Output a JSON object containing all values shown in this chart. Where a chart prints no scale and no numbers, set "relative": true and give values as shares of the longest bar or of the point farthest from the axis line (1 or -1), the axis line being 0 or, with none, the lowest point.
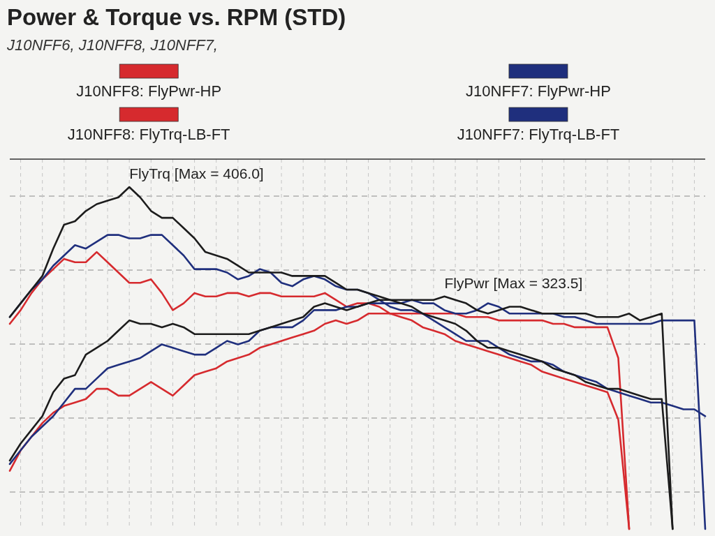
{
  "chart_data": {
    "type": "line",
    "title": "Power & Torque vs. RPM (STD)",
    "subtitle": "J10NFF6, J10NFF8, J10NFF7,",
    "relative": true,
    "grid": true,
    "legend": "top",
    "categories": [
      null,
      null,
      null,
      null,
      null,
      null,
      null,
      null,
      null,
      null,
      null,
      null,
      null,
      null,
      null,
      null,
      null,
      null,
      null,
      null,
      null,
      null,
      null,
      null,
      null,
      null,
      null,
      null,
      null,
      null,
      null,
      null,
      null,
      null,
      null,
      null,
      null,
      null,
      null,
      null,
      null,
      null,
      null,
      null,
      null,
      null,
      null,
      null,
      null,
      null,
      null,
      null,
      null,
      null,
      null,
      null,
      null,
      null,
      null,
      null,
      null,
      null,
      null,
      null,
      null
    ],
    "series": [
      {
        "name": "J10NFF8: FlyPwr-HP",
        "color": "#d62a2e",
        "values": [
          0.17,
          0.23,
          0.27,
          0.31,
          0.34,
          0.36,
          0.37,
          0.38,
          0.41,
          0.41,
          0.39,
          0.39,
          0.41,
          0.43,
          0.41,
          0.39,
          0.42,
          0.45,
          0.46,
          0.47,
          0.49,
          0.5,
          0.51,
          0.53,
          0.54,
          0.55,
          0.56,
          0.57,
          0.58,
          0.6,
          0.61,
          0.6,
          0.61,
          0.63,
          0.63,
          0.63,
          0.63,
          0.63,
          0.63,
          0.63,
          0.63,
          0.63,
          0.62,
          0.62,
          0.62,
          0.61,
          0.61,
          0.61,
          0.61,
          0.61,
          0.6,
          0.6,
          0.59,
          0.59,
          0.59,
          0.59,
          0.5,
          0,
          null,
          null,
          null,
          null,
          null,
          null,
          null
        ]
      },
      {
        "name": "J10NFF8: FlyTrq-LB-FT",
        "color": "#d62a2e",
        "values": [
          0.6,
          0.64,
          0.69,
          0.73,
          0.76,
          0.79,
          0.78,
          0.78,
          0.81,
          0.78,
          0.75,
          0.72,
          0.72,
          0.73,
          0.69,
          0.64,
          0.66,
          0.69,
          0.68,
          0.68,
          0.69,
          0.69,
          0.68,
          0.69,
          0.69,
          0.68,
          0.68,
          0.68,
          0.68,
          0.69,
          0.67,
          0.65,
          0.66,
          0.66,
          0.65,
          0.63,
          0.62,
          0.61,
          0.59,
          0.58,
          0.57,
          0.55,
          0.54,
          0.53,
          0.52,
          0.51,
          0.5,
          0.49,
          0.48,
          0.46,
          0.45,
          0.44,
          0.43,
          0.42,
          0.41,
          0.4,
          0.32,
          0,
          null,
          null,
          null,
          null,
          null,
          null,
          null
        ]
      },
      {
        "name": "J10NFF7: FlyPwr-HP",
        "color": "#1f2f7d",
        "values": [
          0.19,
          0.23,
          0.27,
          0.3,
          0.33,
          0.37,
          0.41,
          0.41,
          0.44,
          0.47,
          0.48,
          0.49,
          0.5,
          0.52,
          0.54,
          0.53,
          0.52,
          0.51,
          0.51,
          0.53,
          0.55,
          0.54,
          0.55,
          0.58,
          0.59,
          0.59,
          0.59,
          0.61,
          0.64,
          0.64,
          0.64,
          0.65,
          0.65,
          0.66,
          0.66,
          0.66,
          0.66,
          0.67,
          0.66,
          0.66,
          0.64,
          0.63,
          0.63,
          0.64,
          0.66,
          0.65,
          0.63,
          0.63,
          0.63,
          0.63,
          0.63,
          0.62,
          0.62,
          0.61,
          0.6,
          0.6,
          0.6,
          0.6,
          0.6,
          0.6,
          0.61,
          0.61,
          0.61,
          0.61,
          0
        ]
      },
      {
        "name": "J10NFF7: FlyTrq-LB-FT",
        "color": "#1f2f7d",
        "values": [
          0.62,
          0.66,
          0.7,
          0.73,
          0.77,
          0.8,
          0.83,
          0.82,
          0.84,
          0.86,
          0.86,
          0.85,
          0.85,
          0.86,
          0.86,
          0.83,
          0.8,
          0.76,
          0.76,
          0.76,
          0.75,
          0.73,
          0.74,
          0.76,
          0.75,
          0.72,
          0.71,
          0.73,
          0.74,
          0.73,
          0.71,
          0.7,
          0.7,
          0.69,
          0.67,
          0.65,
          0.64,
          0.64,
          0.63,
          0.61,
          0.59,
          0.57,
          0.55,
          0.55,
          0.55,
          0.53,
          0.51,
          0.5,
          0.49,
          0.49,
          0.48,
          0.46,
          0.45,
          0.44,
          0.43,
          0.41,
          0.4,
          0.39,
          0.38,
          0.37,
          0.37,
          0.36,
          0.35,
          0.35,
          0.33
        ]
      },
      {
        "color": "#1c1c1c",
        "values": [
          0.62,
          0.66,
          0.7,
          0.74,
          0.82,
          0.89,
          0.9,
          0.93,
          0.95,
          0.96,
          0.97,
          1,
          0.97,
          0.93,
          0.91,
          0.91,
          0.88,
          0.85,
          0.81,
          0.8,
          0.79,
          0.77,
          0.75,
          0.75,
          0.75,
          0.75,
          0.74,
          0.74,
          0.74,
          0.74,
          0.72,
          0.7,
          0.7,
          0.69,
          0.68,
          0.67,
          0.66,
          0.65,
          0.63,
          0.62,
          0.61,
          0.6,
          0.58,
          0.55,
          0.53,
          0.53,
          0.52,
          0.51,
          0.5,
          0.49,
          0.47,
          0.46,
          0.45,
          0.43,
          0.42,
          0.41,
          0.41,
          0.4,
          0.39,
          0.38,
          0.38,
          0,
          null,
          null,
          null
        ]
      },
      {
        "color": "#1c1c1c",
        "values": [
          0.2,
          0.25,
          0.29,
          0.33,
          0.4,
          0.44,
          0.45,
          0.51,
          0.53,
          0.55,
          0.58,
          0.61,
          0.6,
          0.6,
          0.59,
          0.6,
          0.59,
          0.57,
          0.57,
          0.57,
          0.57,
          0.57,
          0.57,
          0.58,
          0.59,
          0.6,
          0.61,
          0.62,
          0.65,
          0.66,
          0.65,
          0.64,
          0.65,
          0.66,
          0.67,
          0.67,
          0.67,
          0.67,
          0.67,
          0.67,
          0.68,
          0.67,
          0.66,
          0.64,
          0.63,
          0.64,
          0.65,
          0.65,
          0.64,
          0.63,
          0.63,
          0.63,
          0.63,
          0.63,
          0.62,
          0.62,
          0.62,
          0.63,
          0.61,
          0.62,
          0.63,
          0,
          null,
          null,
          null
        ]
      }
    ],
    "annotations": [
      "FlyTrq [Max = 406.0]",
      "FlyPwr [Max = 323.5]"
    ]
  }
}
